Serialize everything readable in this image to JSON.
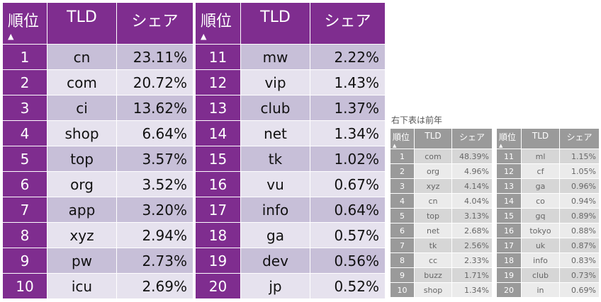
{
  "headers": {
    "rank": "順位",
    "tld": "TLD",
    "share": "シェア",
    "sort_indicator": "▲"
  },
  "caption": "右下表は前年",
  "current_left": [
    {
      "rank": "1",
      "tld": "cn",
      "share": "23.11%"
    },
    {
      "rank": "2",
      "tld": "com",
      "share": "20.72%"
    },
    {
      "rank": "3",
      "tld": "ci",
      "share": "13.62%"
    },
    {
      "rank": "4",
      "tld": "shop",
      "share": "6.64%"
    },
    {
      "rank": "5",
      "tld": "top",
      "share": "3.57%"
    },
    {
      "rank": "6",
      "tld": "org",
      "share": "3.52%"
    },
    {
      "rank": "7",
      "tld": "app",
      "share": "3.20%"
    },
    {
      "rank": "8",
      "tld": "xyz",
      "share": "2.94%"
    },
    {
      "rank": "9",
      "tld": "pw",
      "share": "2.73%"
    },
    {
      "rank": "10",
      "tld": "icu",
      "share": "2.69%"
    }
  ],
  "current_right": [
    {
      "rank": "11",
      "tld": "mw",
      "share": "2.22%"
    },
    {
      "rank": "12",
      "tld": "vip",
      "share": "1.43%"
    },
    {
      "rank": "13",
      "tld": "club",
      "share": "1.37%"
    },
    {
      "rank": "14",
      "tld": "net",
      "share": "1.34%"
    },
    {
      "rank": "15",
      "tld": "tk",
      "share": "1.02%"
    },
    {
      "rank": "16",
      "tld": "vu",
      "share": "0.67%"
    },
    {
      "rank": "17",
      "tld": "info",
      "share": "0.64%"
    },
    {
      "rank": "18",
      "tld": "ga",
      "share": "0.57%"
    },
    {
      "rank": "19",
      "tld": "dev",
      "share": "0.56%"
    },
    {
      "rank": "20",
      "tld": "jp",
      "share": "0.52%"
    }
  ],
  "previous_left": [
    {
      "rank": "1",
      "tld": "com",
      "share": "48.39%"
    },
    {
      "rank": "2",
      "tld": "org",
      "share": "4.96%"
    },
    {
      "rank": "3",
      "tld": "xyz",
      "share": "4.14%"
    },
    {
      "rank": "4",
      "tld": "cn",
      "share": "4.04%"
    },
    {
      "rank": "5",
      "tld": "top",
      "share": "3.13%"
    },
    {
      "rank": "6",
      "tld": "net",
      "share": "2.68%"
    },
    {
      "rank": "7",
      "tld": "tk",
      "share": "2.56%"
    },
    {
      "rank": "8",
      "tld": "cc",
      "share": "2.33%"
    },
    {
      "rank": "9",
      "tld": "buzz",
      "share": "1.71%"
    },
    {
      "rank": "10",
      "tld": "shop",
      "share": "1.34%"
    }
  ],
  "previous_right": [
    {
      "rank": "11",
      "tld": "ml",
      "share": "1.15%"
    },
    {
      "rank": "12",
      "tld": "cf",
      "share": "1.05%"
    },
    {
      "rank": "13",
      "tld": "ga",
      "share": "0.96%"
    },
    {
      "rank": "14",
      "tld": "co",
      "share": "0.94%"
    },
    {
      "rank": "15",
      "tld": "gq",
      "share": "0.89%"
    },
    {
      "rank": "16",
      "tld": "tokyo",
      "share": "0.88%"
    },
    {
      "rank": "17",
      "tld": "uk",
      "share": "0.87%"
    },
    {
      "rank": "18",
      "tld": "info",
      "share": "0.83%"
    },
    {
      "rank": "19",
      "tld": "club",
      "share": "0.73%"
    },
    {
      "rank": "20",
      "tld": "in",
      "share": "0.69%"
    }
  ],
  "colors": {
    "purple_header": "#7f2d8f",
    "purple_row_odd": "#c7bfd8",
    "purple_row_even": "#e6e2ee",
    "grey_header": "#9a9a9a",
    "grey_row_odd": "#d6d6d6",
    "grey_row_even": "#ebebeb"
  }
}
